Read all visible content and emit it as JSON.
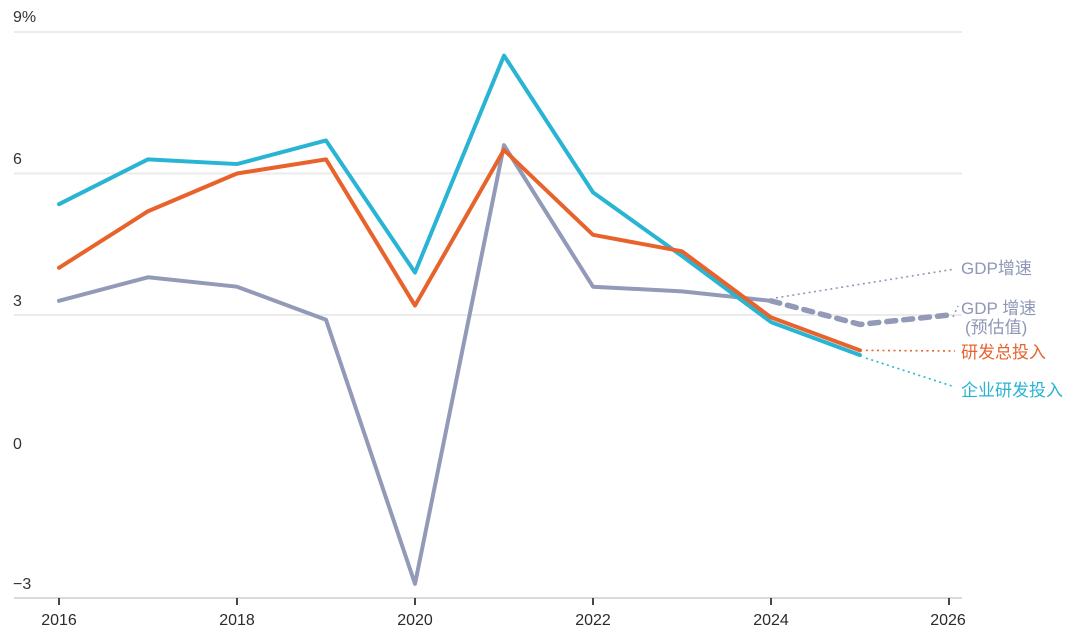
{
  "chart_data": {
    "type": "line",
    "title": "",
    "xlabel": "",
    "ylabel": "%",
    "ylim": [
      -3,
      9
    ],
    "xlim": [
      2016,
      2026
    ],
    "grid": "horizontal gridlines at 9, 6 and 3 only; baseline axis at -3",
    "legend_position": "right-edge callout labels connected by dotted leader lines",
    "gridline_values": [
      9,
      6,
      3
    ],
    "baseline_value": -3,
    "xticks": [
      2016,
      2018,
      2020,
      2022,
      2024,
      2026
    ],
    "series": [
      {
        "id": "gdp",
        "name": "GDP增速",
        "color": "#939ab8",
        "style": "solid",
        "years": [
          2016,
          2017,
          2018,
          2019,
          2020,
          2021,
          2022,
          2023,
          2024
        ],
        "values": [
          3.3,
          3.8,
          3.6,
          2.9,
          -2.7,
          6.6,
          3.6,
          3.5,
          3.3
        ]
      },
      {
        "id": "rd_enterprise",
        "name": "企业研发投入",
        "color": "#29b4d4",
        "style": "solid",
        "years": [
          2016,
          2017,
          2018,
          2019,
          2020,
          2021,
          2022,
          2023,
          2024,
          2025
        ],
        "values": [
          5.35,
          6.3,
          6.2,
          6.7,
          3.9,
          8.5,
          5.6,
          4.25,
          2.85,
          2.15
        ]
      },
      {
        "id": "rd_total",
        "name": "研发总投入",
        "color": "#e8632c",
        "style": "solid",
        "years": [
          2016,
          2017,
          2018,
          2019,
          2020,
          2021,
          2022,
          2023,
          2024,
          2025
        ],
        "values": [
          4.0,
          5.2,
          6.0,
          6.3,
          3.2,
          6.5,
          4.7,
          4.35,
          2.95,
          2.25
        ]
      },
      {
        "id": "gdp_est",
        "name": "GDP 增速 (预估值)",
        "color": "#939ab8",
        "style": "dashed",
        "years": [
          2024,
          2025,
          2026
        ],
        "values": [
          3.3,
          2.8,
          3.0
        ]
      }
    ]
  },
  "axis": {
    "y_labels": [
      "9%",
      "6",
      "3",
      "0",
      "−3"
    ],
    "x_labels": [
      "2016",
      "2018",
      "2020",
      "2022",
      "2024",
      "2026"
    ]
  },
  "legend": {
    "gdp": "GDP增速",
    "gdp_est_line1": "GDP 增速",
    "gdp_est_line2": "(预估值)",
    "rd_total": "研发总投入",
    "rd_enterprise": "企业研发投入"
  },
  "colors": {
    "gdp": "#939ab8",
    "gdp_label": "#8f97b5",
    "rd_total": "#e8632c",
    "rd_enterprise": "#29b4d4",
    "gridline": "#ebebeb",
    "baseline": "#d9d9d9",
    "tick": "#474747"
  }
}
